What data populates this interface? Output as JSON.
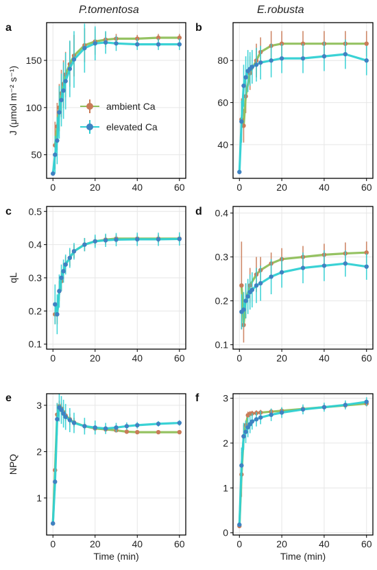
{
  "columns": [
    "P.tomentosa",
    "E.robusta"
  ],
  "colors": {
    "ambient": "#c97b58",
    "elevated": "#3f82c2",
    "ambient_band": "#8fbf5a",
    "elevated_band": "#2fd0d3"
  },
  "legend": {
    "ambient_label": "ambient Ca",
    "elevated_label": "elevated Ca"
  },
  "chart_data": [
    {
      "panel": "a",
      "type": "line",
      "species": "P.tomentosa",
      "ylabel": "J (μmol m⁻² s⁻¹)",
      "xlabel": "",
      "xlim": [
        -3,
        63
      ],
      "ylim": [
        25,
        190
      ],
      "xticks": [
        0,
        20,
        40,
        60
      ],
      "yticks": [
        50,
        100,
        150
      ],
      "series": [
        {
          "name": "ambient Ca",
          "x": [
            1,
            2,
            3,
            4,
            5,
            6,
            8,
            10,
            15,
            20,
            25,
            30,
            40,
            50,
            60
          ],
          "y": [
            60,
            80,
            100,
            115,
            125,
            135,
            146,
            155,
            166,
            170,
            172,
            173,
            173,
            174,
            174
          ],
          "err": [
            25,
            25,
            25,
            25,
            25,
            24,
            24,
            22,
            18,
            14,
            8,
            5,
            4,
            4,
            4
          ]
        },
        {
          "name": "elevated Ca",
          "x": [
            0,
            1,
            2,
            3,
            4,
            5,
            6,
            8,
            10,
            15,
            20,
            25,
            30,
            40,
            50,
            60
          ],
          "y": [
            30,
            50,
            65,
            95,
            108,
            118,
            128,
            141,
            151,
            163,
            168,
            169,
            168,
            167,
            167,
            167
          ],
          "err": [
            0,
            20,
            25,
            28,
            28,
            30,
            30,
            30,
            30,
            26,
            18,
            12,
            8,
            6,
            6,
            6
          ]
        }
      ]
    },
    {
      "panel": "b",
      "type": "line",
      "species": "E.robusta",
      "ylabel": "",
      "xlabel": "",
      "xlim": [
        -3,
        63
      ],
      "ylim": [
        24,
        98
      ],
      "xticks": [
        0,
        20,
        40,
        60
      ],
      "yticks": [
        40,
        60,
        80
      ],
      "series": [
        {
          "name": "ambient Ca",
          "x": [
            1,
            2,
            3,
            5,
            8,
            10,
            15,
            20,
            30,
            40,
            50,
            60
          ],
          "y": [
            52,
            49,
            63,
            74,
            80,
            84,
            87,
            88,
            88,
            88,
            88,
            88
          ],
          "err": [
            10,
            8,
            8,
            8,
            8,
            7,
            7,
            6,
            6,
            6,
            6,
            6
          ]
        },
        {
          "name": "elevated Ca",
          "x": [
            0,
            1,
            2,
            3,
            4,
            5,
            6,
            8,
            10,
            15,
            20,
            30,
            40,
            50,
            60
          ],
          "y": [
            27,
            51,
            68,
            72,
            75,
            76,
            77,
            78,
            79,
            80,
            81,
            81,
            82,
            83,
            80
          ],
          "err": [
            0,
            10,
            10,
            10,
            10,
            8,
            8,
            8,
            8,
            8,
            7,
            7,
            7,
            7,
            7
          ]
        }
      ]
    },
    {
      "panel": "c",
      "type": "line",
      "species": "P.tomentosa",
      "ylabel": "qL",
      "xlabel": "",
      "xlim": [
        -3,
        63
      ],
      "ylim": [
        0.085,
        0.515
      ],
      "xticks": [
        0,
        20,
        40,
        60
      ],
      "yticks": [
        0.1,
        0.2,
        0.3,
        0.4,
        0.5
      ],
      "series": [
        {
          "name": "ambient Ca",
          "x": [
            1,
            2,
            3,
            4,
            5,
            6,
            8,
            10,
            15,
            20,
            25,
            30,
            40,
            50,
            60
          ],
          "y": [
            0.19,
            0.19,
            0.26,
            0.29,
            0.32,
            0.34,
            0.36,
            0.38,
            0.4,
            0.41,
            0.415,
            0.418,
            0.418,
            0.418,
            0.418
          ],
          "err": [
            0.03,
            0.03,
            0.03,
            0.03,
            0.025,
            0.025,
            0.025,
            0.02,
            0.02,
            0.015,
            0.015,
            0.012,
            0.012,
            0.012,
            0.012
          ]
        },
        {
          "name": "elevated Ca",
          "x": [
            1,
            2,
            3,
            4,
            5,
            6,
            8,
            10,
            15,
            20,
            25,
            30,
            40,
            50,
            60
          ],
          "y": [
            0.22,
            0.19,
            0.26,
            0.3,
            0.32,
            0.34,
            0.36,
            0.38,
            0.4,
            0.41,
            0.413,
            0.415,
            0.416,
            0.416,
            0.417
          ],
          "err": [
            0.06,
            0.06,
            0.05,
            0.04,
            0.035,
            0.03,
            0.03,
            0.025,
            0.02,
            0.02,
            0.02,
            0.02,
            0.02,
            0.02,
            0.02
          ]
        }
      ]
    },
    {
      "panel": "d",
      "type": "line",
      "species": "E.robusta",
      "ylabel": "",
      "xlabel": "",
      "xlim": [
        -3,
        63
      ],
      "ylim": [
        0.09,
        0.415
      ],
      "xticks": [
        0,
        20,
        40,
        60
      ],
      "yticks": [
        0.1,
        0.2,
        0.3,
        0.4
      ],
      "series": [
        {
          "name": "ambient Ca",
          "x": [
            1,
            2,
            3,
            5,
            8,
            10,
            15,
            20,
            30,
            40,
            50,
            60
          ],
          "y": [
            0.235,
            0.145,
            0.2,
            0.235,
            0.26,
            0.27,
            0.285,
            0.295,
            0.3,
            0.305,
            0.308,
            0.31
          ],
          "err": [
            0.1,
            0.04,
            0.04,
            0.04,
            0.04,
            0.03,
            0.025,
            0.025,
            0.025,
            0.025,
            0.025,
            0.025
          ]
        },
        {
          "name": "elevated Ca",
          "x": [
            1,
            2,
            3,
            4,
            5,
            6,
            8,
            10,
            15,
            20,
            30,
            40,
            50,
            60
          ],
          "y": [
            0.175,
            0.18,
            0.2,
            0.21,
            0.22,
            0.225,
            0.235,
            0.24,
            0.255,
            0.265,
            0.275,
            0.28,
            0.285,
            0.278
          ],
          "err": [
            0.04,
            0.04,
            0.04,
            0.04,
            0.04,
            0.04,
            0.04,
            0.04,
            0.04,
            0.035,
            0.035,
            0.035,
            0.03,
            0.03
          ]
        }
      ]
    },
    {
      "panel": "e",
      "type": "line",
      "species": "P.tomentosa",
      "ylabel": "NPQ",
      "xlabel": "Time (min)",
      "xlim": [
        -3,
        63
      ],
      "ylim": [
        0.2,
        3.25
      ],
      "xticks": [
        0,
        20,
        40,
        60
      ],
      "yticks": [
        1,
        2,
        3
      ],
      "series": [
        {
          "name": "ambient Ca",
          "x": [
            0,
            1,
            2,
            3,
            4,
            5,
            6,
            8,
            10,
            15,
            20,
            25,
            30,
            35,
            40,
            50,
            60
          ],
          "y": [
            0.45,
            1.6,
            2.8,
            2.98,
            2.93,
            2.85,
            2.78,
            2.7,
            2.63,
            2.55,
            2.5,
            2.48,
            2.46,
            2.43,
            2.42,
            2.42,
            2.42
          ],
          "err": [
            0,
            0.35,
            0.25,
            0.12,
            0.12,
            0.12,
            0.12,
            0.12,
            0.1,
            0.08,
            0.06,
            0.05,
            0.04,
            0.04,
            0.04,
            0.04,
            0.04
          ]
        },
        {
          "name": "elevated Ca",
          "x": [
            0,
            1,
            2,
            3,
            4,
            5,
            6,
            8,
            10,
            15,
            20,
            25,
            30,
            35,
            40,
            50,
            60
          ],
          "y": [
            0.45,
            1.35,
            2.7,
            2.95,
            2.9,
            2.82,
            2.75,
            2.68,
            2.62,
            2.55,
            2.52,
            2.5,
            2.52,
            2.55,
            2.57,
            2.6,
            2.62
          ],
          "err": [
            0,
            0.2,
            0.35,
            0.3,
            0.3,
            0.3,
            0.28,
            0.26,
            0.22,
            0.18,
            0.15,
            0.12,
            0.1,
            0.08,
            0.07,
            0.06,
            0.06
          ]
        }
      ]
    },
    {
      "panel": "f",
      "type": "line",
      "species": "E.robusta",
      "ylabel": "",
      "xlabel": "Time (min)",
      "xlim": [
        -3,
        63
      ],
      "ylim": [
        -0.05,
        3.1
      ],
      "xticks": [
        0,
        20,
        40,
        60
      ],
      "yticks": [
        0,
        1,
        2,
        3
      ],
      "series": [
        {
          "name": "ambient Ca",
          "x": [
            0,
            1,
            2,
            3,
            4,
            5,
            6,
            8,
            10,
            15,
            20,
            30,
            40,
            50,
            60
          ],
          "y": [
            0.15,
            1.3,
            2.15,
            2.4,
            2.62,
            2.65,
            2.66,
            2.67,
            2.68,
            2.7,
            2.72,
            2.76,
            2.8,
            2.84,
            2.88
          ],
          "err": [
            0,
            0.5,
            0.25,
            0.1,
            0.08,
            0.06,
            0.06,
            0.06,
            0.06,
            0.06,
            0.06,
            0.06,
            0.06,
            0.06,
            0.06
          ]
        },
        {
          "name": "elevated Ca",
          "x": [
            0,
            1,
            2,
            3,
            4,
            5,
            6,
            8,
            10,
            15,
            20,
            30,
            40,
            50,
            60
          ],
          "y": [
            0.18,
            1.5,
            2.15,
            2.25,
            2.35,
            2.42,
            2.48,
            2.53,
            2.57,
            2.63,
            2.68,
            2.75,
            2.8,
            2.85,
            2.92
          ],
          "err": [
            0,
            0.4,
            0.3,
            0.25,
            0.22,
            0.2,
            0.18,
            0.16,
            0.15,
            0.14,
            0.12,
            0.11,
            0.1,
            0.1,
            0.1
          ]
        }
      ]
    }
  ]
}
